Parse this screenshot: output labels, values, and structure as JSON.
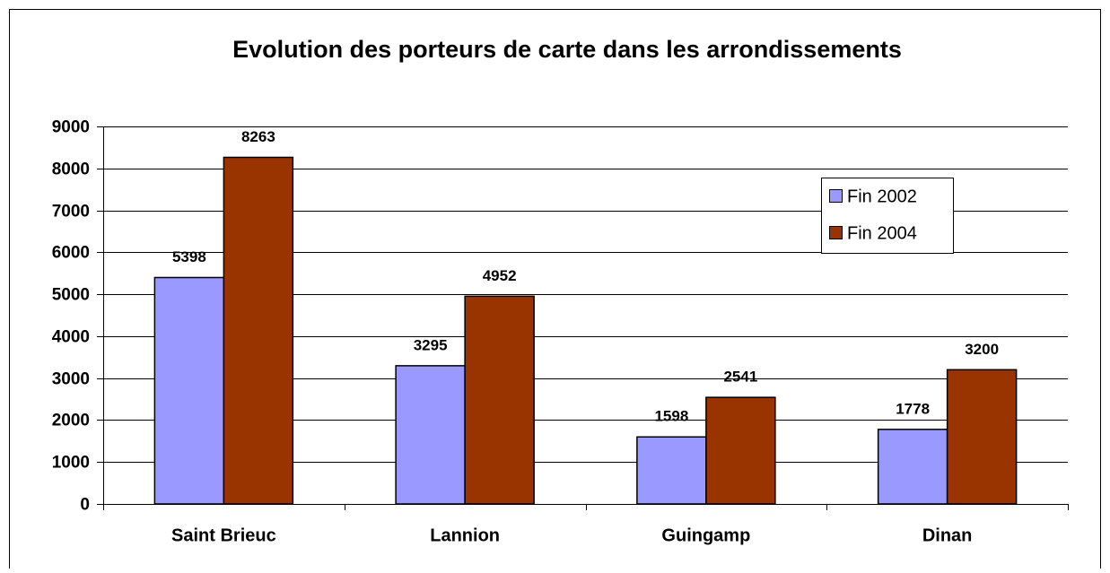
{
  "chart_data": {
    "type": "bar",
    "title": "Evolution des porteurs de carte dans les arrondissements",
    "categories": [
      "Saint Brieuc",
      "Lannion",
      "Guingamp",
      "Dinan"
    ],
    "series": [
      {
        "name": "Fin 2002",
        "color": "#9999ff",
        "values": [
          5398,
          3295,
          1598,
          1778
        ]
      },
      {
        "name": "Fin 2004",
        "color": "#993300",
        "values": [
          8263,
          4952,
          2541,
          3200
        ]
      }
    ],
    "ylim": [
      0,
      9000
    ],
    "yticks": [
      0,
      1000,
      2000,
      3000,
      4000,
      5000,
      6000,
      7000,
      8000,
      9000
    ],
    "grid": true,
    "legend": "upper right"
  }
}
